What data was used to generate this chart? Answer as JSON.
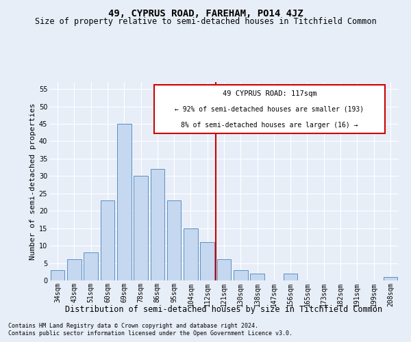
{
  "title": "49, CYPRUS ROAD, FAREHAM, PO14 4JZ",
  "subtitle": "Size of property relative to semi-detached houses in Titchfield Common",
  "xlabel": "Distribution of semi-detached houses by size in Titchfield Common",
  "ylabel": "Number of semi-detached properties",
  "categories": [
    "34sqm",
    "43sqm",
    "51sqm",
    "60sqm",
    "69sqm",
    "78sqm",
    "86sqm",
    "95sqm",
    "104sqm",
    "112sqm",
    "121sqm",
    "130sqm",
    "138sqm",
    "147sqm",
    "156sqm",
    "165sqm",
    "173sqm",
    "182sqm",
    "191sqm",
    "199sqm",
    "208sqm"
  ],
  "values": [
    3,
    6,
    8,
    23,
    45,
    30,
    32,
    23,
    15,
    11,
    6,
    3,
    2,
    0,
    2,
    0,
    0,
    0,
    0,
    0,
    1
  ],
  "bar_color": "#c5d8f0",
  "bar_edge_color": "#5a8fc2",
  "vline_color": "#cc0000",
  "annotation_line1": "49 CYPRUS ROAD: 117sqm",
  "annotation_line2": "← 92% of semi-detached houses are smaller (193)",
  "annotation_line3": "8% of semi-detached houses are larger (16) →",
  "annotation_box_color": "#cc0000",
  "ylim": [
    0,
    57
  ],
  "yticks": [
    0,
    5,
    10,
    15,
    20,
    25,
    30,
    35,
    40,
    45,
    50,
    55
  ],
  "footnote1": "Contains HM Land Registry data © Crown copyright and database right 2024.",
  "footnote2": "Contains public sector information licensed under the Open Government Licence v3.0.",
  "bg_color": "#e8eef8",
  "grid_color": "#ffffff",
  "title_fontsize": 10,
  "subtitle_fontsize": 8.5,
  "axis_label_fontsize": 8,
  "xlabel_fontsize": 8.5,
  "tick_fontsize": 7,
  "footnote_fontsize": 6
}
